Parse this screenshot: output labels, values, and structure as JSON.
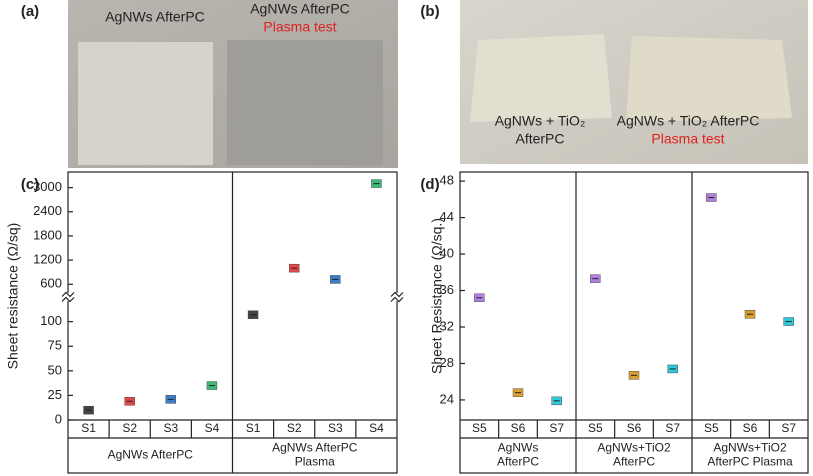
{
  "photos": [
    {
      "label": "(a)",
      "captions": [
        {
          "lines": [
            "AgNWs AfterPC"
          ]
        },
        {
          "lines": [
            "AgNWs AfterPC"
          ],
          "highlight": "Plasma test"
        }
      ]
    },
    {
      "label": "(b)",
      "captions": [
        {
          "lines": [
            "AgNWs + TiO₂",
            "AfterPC"
          ]
        },
        {
          "lines": [
            "AgNWs + TiO₂ AfterPC"
          ],
          "highlight": "Plasma test"
        }
      ]
    }
  ],
  "chart_data": [
    {
      "type": "scatter",
      "label": "(c)",
      "ylabel": "Sheet resistance (Ω/sq)",
      "y_segments": [
        {
          "ylim": [
            0,
            122
          ],
          "yticks": [
            0,
            25,
            50,
            75,
            100
          ]
        },
        {
          "ylim": [
            358,
            3388
          ],
          "yticks": [
            600,
            1200,
            1800,
            2400,
            3000
          ]
        }
      ],
      "groups": [
        {
          "label": [
            "AgNWs AfterPC"
          ],
          "categories": [
            "S1",
            "S2",
            "S3",
            "S4"
          ],
          "values": [
            10,
            19,
            21,
            35
          ],
          "colors": [
            "#444444",
            "#e04848",
            "#3c7fc8",
            "#3cb878"
          ]
        },
        {
          "label": [
            "AgNWs AfterPC",
            "Plasma"
          ],
          "categories": [
            "S1",
            "S2",
            "S3",
            "S4"
          ],
          "values": [
            107,
            1000,
            720,
            3100
          ],
          "colors": [
            "#444444",
            "#e04848",
            "#3c7fc8",
            "#3cb878"
          ]
        }
      ]
    },
    {
      "type": "scatter",
      "label": "(d)",
      "ylabel": "Sheet Resistance (Ω/sq.)",
      "y_segments": [
        {
          "ylim": [
            21.8,
            49
          ],
          "yticks": [
            24,
            28,
            32,
            36,
            40,
            44,
            48
          ]
        }
      ],
      "groups": [
        {
          "label": [
            "AgNWs",
            "AfterPC"
          ],
          "categories": [
            "S5",
            "S6",
            "S7"
          ],
          "values": [
            35.2,
            24.8,
            23.9
          ],
          "colors": [
            "#b080e0",
            "#d8a030",
            "#30c8d8"
          ]
        },
        {
          "label": [
            "AgNWs+TiO2",
            "AfterPC"
          ],
          "categories": [
            "S5",
            "S6",
            "S7"
          ],
          "values": [
            37.3,
            26.7,
            27.4
          ],
          "colors": [
            "#b080e0",
            "#d8a030",
            "#30c8d8"
          ]
        },
        {
          "label": [
            "AgNWs+TiO2",
            "AfterPC Plasma"
          ],
          "categories": [
            "S5",
            "S6",
            "S7"
          ],
          "values": [
            46.2,
            33.4,
            32.6
          ],
          "colors": [
            "#b080e0",
            "#d8a030",
            "#30c8d8"
          ]
        }
      ]
    }
  ]
}
